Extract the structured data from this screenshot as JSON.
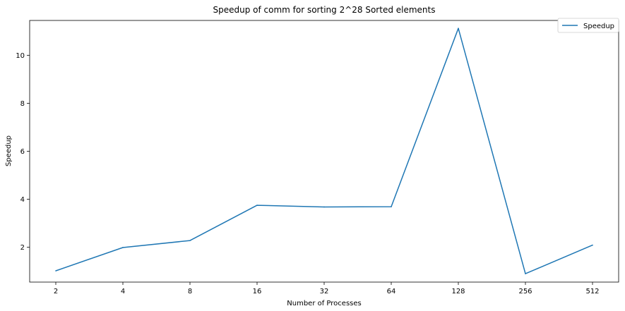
{
  "chart_data": {
    "type": "line",
    "title": "Speedup of comm for sorting 2^28 Sorted elements",
    "xlabel": "Number of Processes",
    "ylabel": "Speedup",
    "categories": [
      "2",
      "4",
      "8",
      "16",
      "32",
      "64",
      "128",
      "256",
      "512"
    ],
    "series": [
      {
        "name": "Speedup",
        "color": "#1f77b4",
        "values": [
          1.02,
          1.99,
          2.28,
          3.75,
          3.68,
          3.69,
          11.12,
          0.9,
          2.09
        ]
      }
    ],
    "ylim": [
      0.55,
      11.45
    ],
    "yticks": [
      2,
      4,
      6,
      8,
      10
    ],
    "grid": false,
    "legend_position": "top-right"
  }
}
